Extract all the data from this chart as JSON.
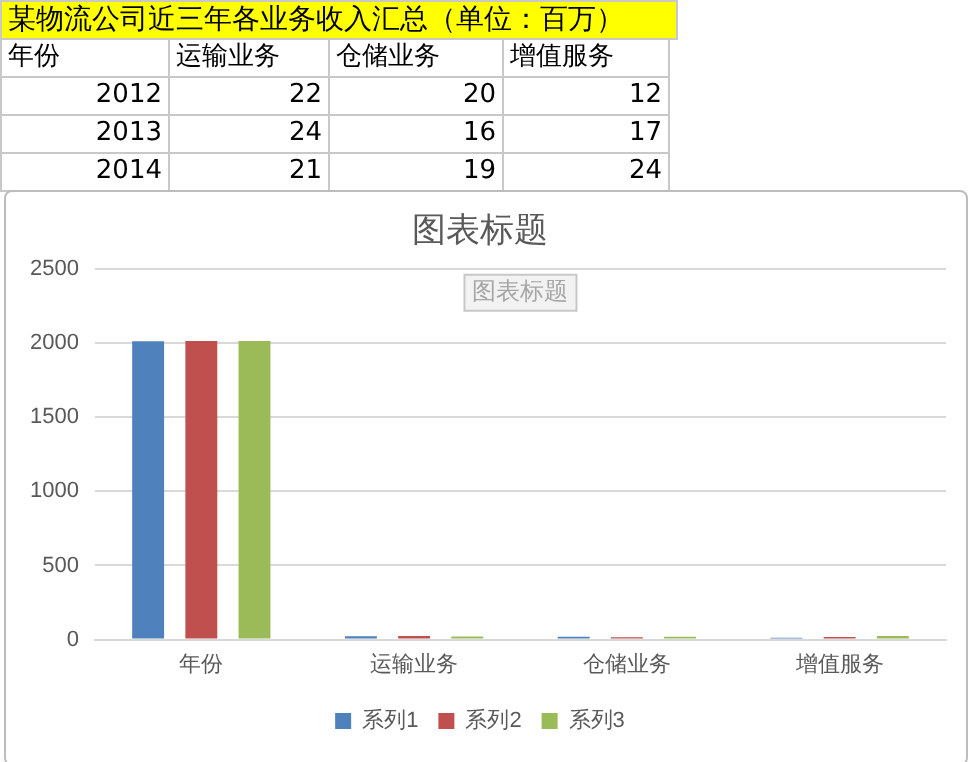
{
  "chart_data": [
    {
      "type": "other",
      "title": "某物流公司近三年各业务收入汇总（单位：百万）",
      "annotations": [
        "年份",
        "运输业务",
        "仓储业务",
        "增值服务",
        "2012",
        "22",
        "20",
        "12",
        "2013",
        "24",
        "16",
        "17",
        "2014",
        "21",
        "19",
        "24"
      ]
    },
    {
      "type": "bar",
      "title": "图表标题",
      "annotations": [
        "图表标题"
      ],
      "categories": [
        "年份",
        "运输业务",
        "仓储业务",
        "增值服务"
      ],
      "series": [
        {
          "name": "系列1",
          "color": "#4f81bd",
          "values": [
            2012,
            22,
            20,
            12
          ]
        },
        {
          "name": "系列2",
          "color": "#c0504d",
          "values": [
            2013,
            24,
            16,
            17
          ]
        },
        {
          "name": "系列3",
          "color": "#9bbb59",
          "values": [
            2014,
            21,
            19,
            24
          ]
        }
      ],
      "ylim": [
        0,
        2500
      ],
      "yticks": [
        0,
        500,
        1000,
        1500,
        2000,
        2500
      ],
      "grid": "y",
      "legend": "bottom"
    }
  ]
}
